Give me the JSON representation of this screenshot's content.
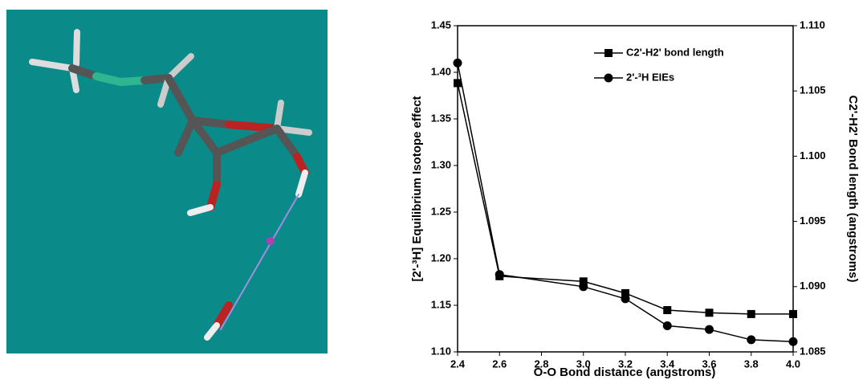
{
  "chart_data": {
    "type": "line",
    "x_label": "O-O Bond distance (angstroms)",
    "y_label": "[2'-³H] Equilibrium Isotope effect",
    "y2_label": "C2'-H2' Bond length (angstroms)",
    "x": [
      2.4,
      2.6,
      3.0,
      3.2,
      3.4,
      3.6,
      3.8,
      4.0
    ],
    "series": [
      {
        "name": "C2'-H2' bond length",
        "color": "#000000",
        "marker": "square",
        "axis": "y2",
        "values": [
          1.1056,
          1.0908,
          1.0904,
          1.0895,
          1.0882,
          1.088,
          1.0879,
          1.0879
        ]
      },
      {
        "name": "2'-³H EIEs",
        "color": "#000000",
        "marker": "circle",
        "values": [
          1.41,
          1.183,
          1.17,
          1.157,
          1.128,
          1.124,
          1.113,
          1.111
        ]
      }
    ],
    "xlim": [
      2.4,
      4.0
    ],
    "xticks": [
      2.4,
      2.6,
      2.8,
      {
        "value": 3.0,
        "label": "3.0"
      },
      3.2,
      3.4,
      3.6,
      3.8,
      {
        "value": 4.0,
        "label": "4.0"
      }
    ],
    "ylim": [
      1.1,
      1.45
    ],
    "yticks": [
      {
        "value": 1.1,
        "label": "1.10"
      },
      1.15,
      {
        "value": 1.2,
        "label": "1.20"
      },
      1.25,
      {
        "value": 1.3,
        "label": "1.30"
      },
      1.35,
      {
        "value": 1.4,
        "label": "1.40"
      },
      1.45
    ],
    "y2lim": [
      1.085,
      1.11
    ],
    "y2ticks": [
      1.085,
      {
        "value": 1.09,
        "label": "1.090"
      },
      1.095,
      {
        "value": 1.1,
        "label": "1.100"
      },
      1.105,
      {
        "value": 1.11,
        "label": "1.110"
      }
    ],
    "grid": false,
    "legend": "upper right"
  }
}
